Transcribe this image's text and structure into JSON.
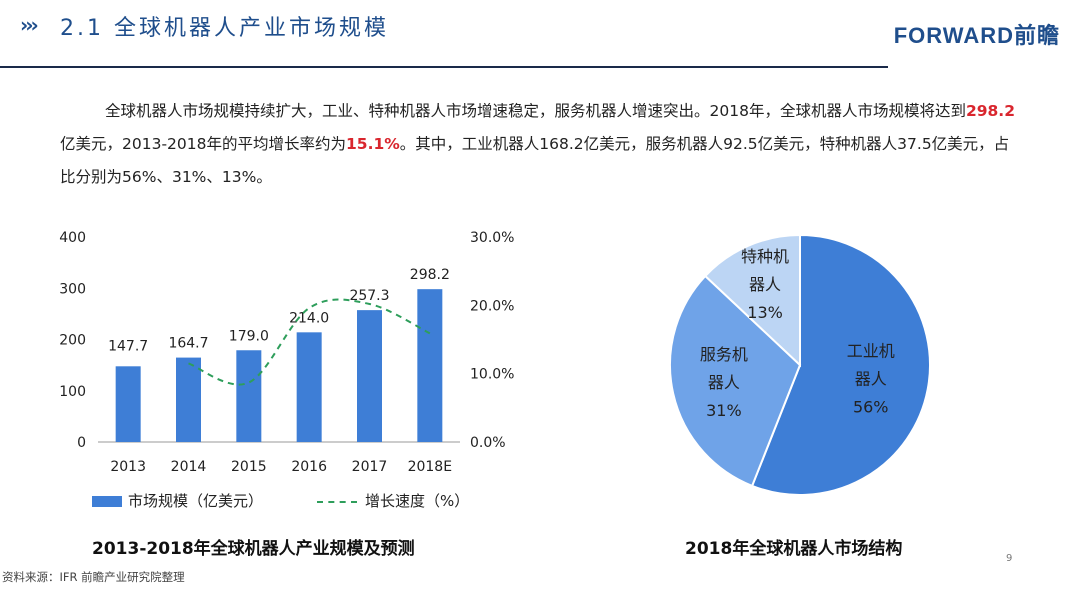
{
  "header": {
    "chevrons": "›››",
    "title": "2.1  全球机器人产业市场规模",
    "logo": "FORWARD前瞻"
  },
  "paragraph": {
    "part1": "全球机器人市场规模持续扩大，工业、特种机器人市场增速稳定，服务机器人增速突出。2018年，全球机器人市场规模将达到",
    "hl1": "298.2",
    "part2": "亿美元，2013-2018年的平均增长率约为",
    "hl2": "15.1%",
    "part3": "。其中，工业机器人168.2亿美元，服务机器人92.5亿美元，特种机器人37.5亿美元，占比分别为56%、31%、13%。"
  },
  "chart_data": [
    {
      "type": "bar",
      "categories": [
        "2013",
        "2014",
        "2015",
        "2016",
        "2017",
        "2018E"
      ],
      "series": [
        {
          "name": "市场规模（亿美元）",
          "type": "bar",
          "axis": "left",
          "values": [
            147.7,
            164.7,
            179.0,
            214.0,
            257.3,
            298.2
          ],
          "color": "#3e7ed6"
        },
        {
          "name": "增长速度（%）",
          "type": "line-dashed",
          "axis": "right",
          "values": [
            null,
            11.5,
            8.7,
            19.6,
            20.2,
            15.9
          ],
          "color": "#2e9e5b"
        }
      ],
      "data_labels": [
        "147.7",
        "164.7",
        "179.0",
        "214.0",
        "257.3",
        "298.2"
      ],
      "y_left": {
        "ticks": [
          "0",
          "100",
          "200",
          "300",
          "400"
        ],
        "ylim": [
          0,
          400
        ]
      },
      "y_right": {
        "ticks": [
          "0.0%",
          "10.0%",
          "20.0%",
          "30.0%"
        ],
        "ylim": [
          0,
          30
        ]
      },
      "legend": {
        "bar_label": "市场规模（亿美元）",
        "line_label": "增长速度（%）",
        "position": "bottom"
      },
      "title": "2013-2018年全球机器人产业规模及预测"
    },
    {
      "type": "pie",
      "slices": [
        {
          "label_line1": "工业机",
          "label_line2": "器人",
          "percent_label": "56%",
          "value": 56,
          "color": "#3e7ed6"
        },
        {
          "label_line1": "服务机",
          "label_line2": "器人",
          "percent_label": "31%",
          "value": 31,
          "color": "#6fa3e8"
        },
        {
          "label_line1": "特种机",
          "label_line2": "器人",
          "percent_label": "13%",
          "value": 13,
          "color": "#bcd5f4"
        }
      ],
      "title": "2018年全球机器人市场结构"
    }
  ],
  "footer": {
    "source": "资料来源：IFR 前瞻产业研究院整理",
    "page_number": "9"
  }
}
